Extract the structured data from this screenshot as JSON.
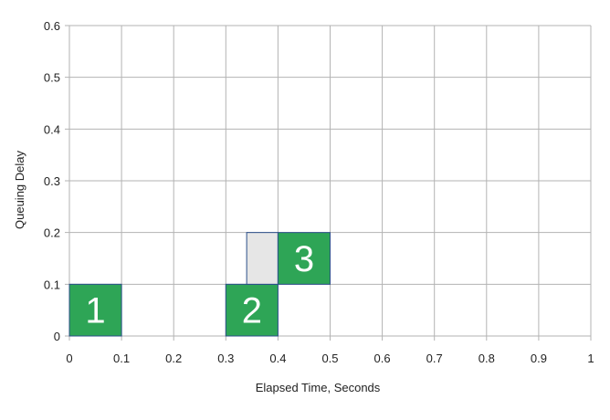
{
  "chart_data": {
    "type": "rectangles",
    "xlabel": "Elapsed Time, Seconds",
    "ylabel": "Queuing Delay",
    "xlim": [
      0,
      1
    ],
    "ylim": [
      0,
      0.6
    ],
    "x_ticks": [
      "0",
      "0.1",
      "0.2",
      "0.3",
      "0.4",
      "0.5",
      "0.6",
      "0.7",
      "0.8",
      "0.9",
      "1"
    ],
    "y_ticks": [
      "0",
      "0.1",
      "0.2",
      "0.3",
      "0.4",
      "0.5",
      "0.6"
    ],
    "grid": true,
    "boxes": [
      {
        "label": "1",
        "x0": 0,
        "x1": 0.1,
        "y0": 0,
        "y1": 0.1,
        "color": "#2ea556"
      },
      {
        "label": "2",
        "x0": 0.3,
        "x1": 0.4,
        "y0": 0,
        "y1": 0.1,
        "color": "#2ea556"
      },
      {
        "label": "",
        "x0": 0.34,
        "x1": 0.4,
        "y0": 0.1,
        "y1": 0.2,
        "color": "#e6e6e6"
      },
      {
        "label": "3",
        "x0": 0.4,
        "x1": 0.5,
        "y0": 0.1,
        "y1": 0.2,
        "color": "#2ea556"
      }
    ],
    "box_border_color": "#2b4f8a"
  }
}
